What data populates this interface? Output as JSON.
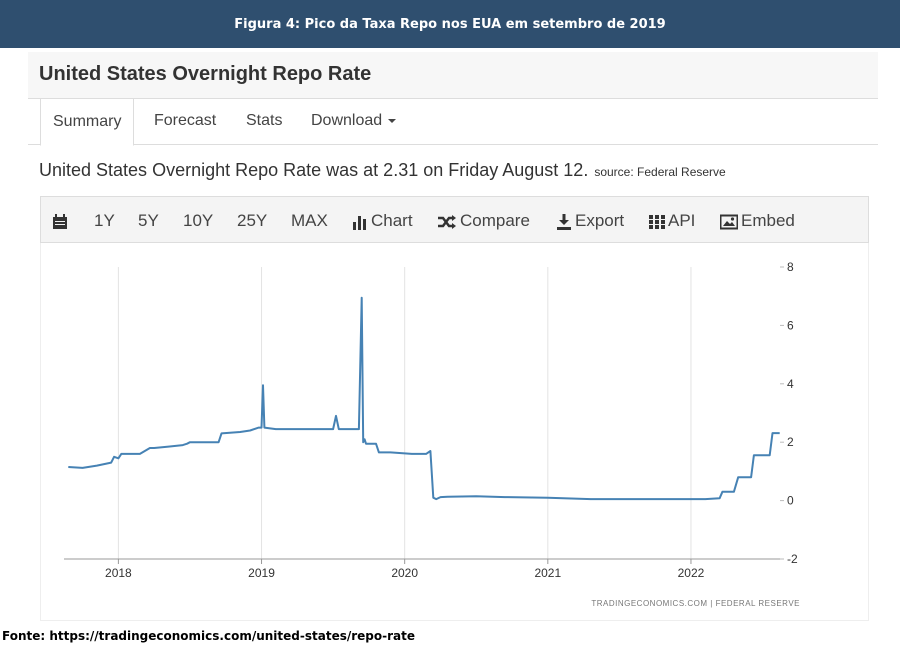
{
  "banner": {
    "title": "Figura 4: Pico da Taxa Repo nos EUA em setembro de 2019"
  },
  "panel": {
    "title": "United States Overnight Repo Rate"
  },
  "tabs": [
    {
      "label": "Summary"
    },
    {
      "label": "Forecast"
    },
    {
      "label": "Stats"
    },
    {
      "label": "Download"
    }
  ],
  "summary": {
    "text": "United States Overnight Repo Rate was at 2.31 on Friday August 12.",
    "source": "source: Federal Reserve"
  },
  "toolbar": {
    "range_1y": "1Y",
    "range_5y": "5Y",
    "range_10y": "10Y",
    "range_25y": "25Y",
    "range_max": "MAX",
    "chart": "Chart",
    "compare": "Compare",
    "export": "Export",
    "api": "API",
    "embed": "Embed"
  },
  "icons": [
    "calendar-icon",
    "bar-chart-icon",
    "shuffle-icon",
    "download-icon",
    "grid-icon",
    "image-icon"
  ],
  "colors": {
    "line": "#4682b4",
    "banner": "#2f4f6f"
  },
  "chart_data": {
    "type": "line",
    "series": [
      {
        "x": [
          2017.65,
          2017.75,
          2017.85,
          2017.95,
          2017.97,
          2018.0,
          2018.02,
          2018.15,
          2018.22,
          2018.25,
          2018.35,
          2018.45,
          2018.48,
          2018.5,
          2018.6,
          2018.7,
          2018.72,
          2018.85,
          2018.92,
          2018.98,
          2019.0,
          2019.01,
          2019.02,
          2019.1,
          2019.2,
          2019.35,
          2019.5,
          2019.52,
          2019.54,
          2019.6,
          2019.68,
          2019.7,
          2019.71,
          2019.72,
          2019.73,
          2019.75,
          2019.8,
          2019.82,
          2019.9,
          2020.05,
          2020.15,
          2020.18,
          2020.2,
          2020.22,
          2020.25,
          2020.3,
          2020.5,
          2020.7,
          2021.0,
          2021.3,
          2021.5,
          2021.8,
          2022.1,
          2022.2,
          2022.22,
          2022.3,
          2022.33,
          2022.42,
          2022.44,
          2022.55,
          2022.57,
          2022.62
        ],
        "y": [
          1.15,
          1.12,
          1.2,
          1.3,
          1.5,
          1.45,
          1.6,
          1.6,
          1.8,
          1.8,
          1.85,
          1.9,
          1.95,
          2.0,
          2.0,
          2.0,
          2.3,
          2.35,
          2.4,
          2.5,
          2.5,
          3.95,
          2.5,
          2.45,
          2.45,
          2.45,
          2.45,
          2.9,
          2.45,
          2.45,
          2.45,
          6.95,
          2.0,
          2.1,
          1.95,
          1.95,
          1.95,
          1.65,
          1.65,
          1.6,
          1.6,
          1.7,
          0.1,
          0.05,
          0.12,
          0.13,
          0.15,
          0.12,
          0.1,
          0.05,
          0.05,
          0.05,
          0.05,
          0.08,
          0.3,
          0.3,
          0.8,
          0.8,
          1.55,
          1.55,
          2.31,
          2.31
        ]
      }
    ],
    "xticks": [
      2018,
      2019,
      2020,
      2021,
      2022
    ],
    "yticks": [
      -2,
      0,
      2,
      4,
      6,
      8
    ],
    "xlim": [
      2017.62,
      2022.65
    ],
    "ylim": [
      -2,
      8
    ],
    "grid": "vertical",
    "y_axis_side": "right",
    "watermark": "TRADINGECONOMICS.COM  |  FEDERAL RESERVE"
  },
  "footer": {
    "text": "Fonte: https://tradingeconomics.com/united-states/repo-rate"
  }
}
